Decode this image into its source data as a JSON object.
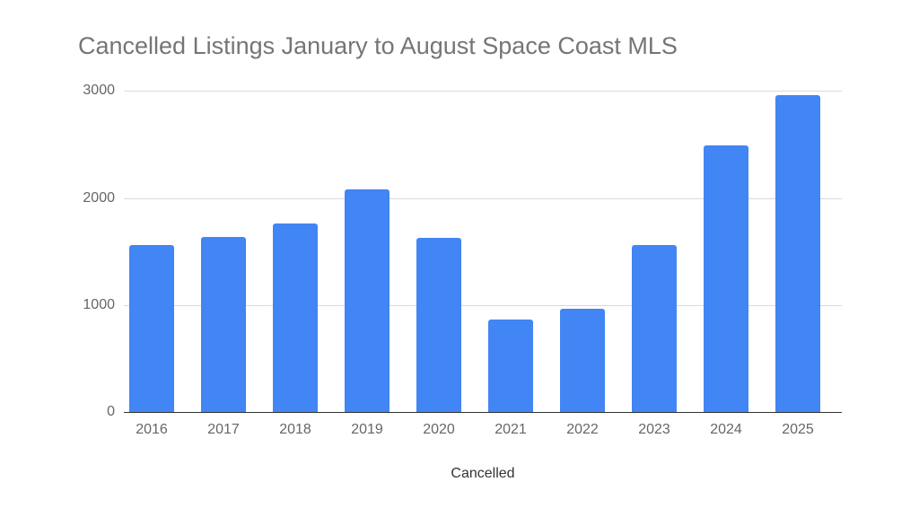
{
  "chart_data": {
    "type": "bar",
    "title": "Cancelled Listings January to August Space Coast MLS",
    "xlabel": "Cancelled",
    "ylabel": "",
    "categories": [
      "2016",
      "2017",
      "2018",
      "2019",
      "2020",
      "2021",
      "2022",
      "2023",
      "2024",
      "2025"
    ],
    "values": [
      1560,
      1635,
      1760,
      2080,
      1625,
      865,
      965,
      1560,
      2490,
      2960
    ],
    "ylim": [
      0,
      3000
    ],
    "yticks": [
      "0",
      "1000",
      "2000",
      "3000"
    ],
    "grid": true,
    "legend": "none",
    "bar_color": "#4285f4"
  }
}
